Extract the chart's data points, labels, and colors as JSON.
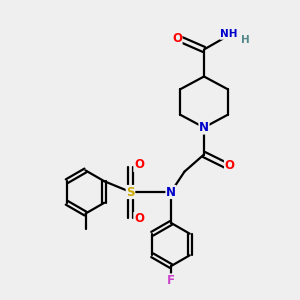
{
  "background_color": "#efefef",
  "atom_colors": {
    "C": "#000000",
    "N": "#0000cc",
    "O": "#ff0000",
    "S": "#ccaa00",
    "F": "#cc44cc",
    "H": "#558888"
  },
  "bond_color": "#000000",
  "figsize": [
    3.0,
    3.0
  ],
  "dpi": 100
}
